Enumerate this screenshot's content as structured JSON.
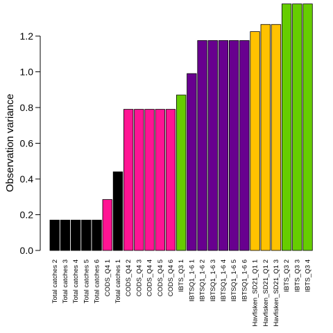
{
  "chart_data": {
    "type": "bar",
    "title": "",
    "xlabel": "",
    "ylabel": "Observation variance",
    "ylim": [
      0,
      1.4
    ],
    "yticks": [
      0.0,
      0.2,
      0.4,
      0.6,
      0.8,
      1.0,
      1.2
    ],
    "ytick_labels": [
      "0.0",
      "0.2",
      "0.4",
      "0.6",
      "0.8",
      "1.0",
      "1.2"
    ],
    "grid": false,
    "legend": "none",
    "categories": [
      "Total catches 2",
      "Total catches 3",
      "Total catches 4",
      "Total catches 5",
      "Total catches 6",
      "CODS_Q4 1",
      "Total catches 1",
      "CODS_Q4 2",
      "CODS_Q4 3",
      "CODS_Q4 4",
      "CODS_Q4 5",
      "CODS_Q4 6",
      "IBTS_Q3 1",
      "IBTSQ1_1-6 1",
      "IBTSQ1_1-6 2",
      "IBTSQ1_1-6 3",
      "IBTSQ1_1-6 4",
      "IBTSQ1_1-6 5",
      "IBTSQ1_1-6 6",
      "Havfisken_SD21_Q1 1",
      "Havfisken_SD21_Q1 2",
      "Havfisken_SD21_Q1 3",
      "IBTS_Q3 2",
      "IBTS_Q3 3",
      "IBTS_Q3 4"
    ],
    "values": [
      0.17,
      0.17,
      0.17,
      0.17,
      0.17,
      0.285,
      0.44,
      0.79,
      0.79,
      0.79,
      0.79,
      0.79,
      0.87,
      0.99,
      1.175,
      1.175,
      1.175,
      1.175,
      1.175,
      1.225,
      1.265,
      1.265,
      1.38,
      1.38,
      1.38
    ],
    "bar_colors": [
      "#000000",
      "#000000",
      "#000000",
      "#000000",
      "#000000",
      "#ff1493",
      "#000000",
      "#ff1493",
      "#ff1493",
      "#ff1493",
      "#ff1493",
      "#ff1493",
      "#66cd00",
      "#68008f",
      "#68008f",
      "#68008f",
      "#68008f",
      "#68008f",
      "#68008f",
      "#ffc200",
      "#ffc200",
      "#ffc200",
      "#66cd00",
      "#66cd00",
      "#66cd00"
    ]
  }
}
